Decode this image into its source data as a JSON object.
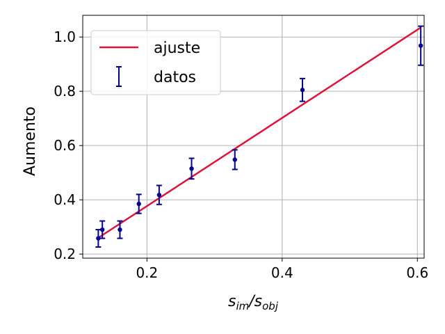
{
  "chart_data": {
    "type": "scatter",
    "title": "",
    "xlabel_main": "s",
    "xlabel_sub1": "im",
    "xlabel_sep": "/s",
    "xlabel_sub2": "obj",
    "ylabel": "Aumento",
    "xlim": [
      0.105,
      0.61
    ],
    "ylim": [
      0.185,
      1.08
    ],
    "xticks": [
      0.2,
      0.4,
      0.6
    ],
    "yticks": [
      0.2,
      0.4,
      0.6,
      0.8,
      1.0
    ],
    "xtick_labels": [
      "0.2",
      "0.4",
      "0.6"
    ],
    "ytick_labels": [
      "0.2",
      "0.4",
      "0.6",
      "0.8",
      "1.0"
    ],
    "grid": true,
    "legend_position": "top-left",
    "series": [
      {
        "name": "ajuste",
        "kind": "line",
        "color": "#dc143c",
        "x": [
          0.128,
          0.605
        ],
        "y": [
          0.26,
          1.035
        ]
      },
      {
        "name": "datos",
        "kind": "errorbar",
        "color": "#00008b",
        "x": [
          0.128,
          0.134,
          0.16,
          0.188,
          0.218,
          0.266,
          0.33,
          0.43,
          0.605
        ],
        "y": [
          0.258,
          0.29,
          0.29,
          0.385,
          0.418,
          0.515,
          0.548,
          0.805,
          0.968
        ],
        "yerr": [
          0.032,
          0.032,
          0.032,
          0.035,
          0.035,
          0.038,
          0.036,
          0.042,
          0.072
        ]
      }
    ]
  }
}
